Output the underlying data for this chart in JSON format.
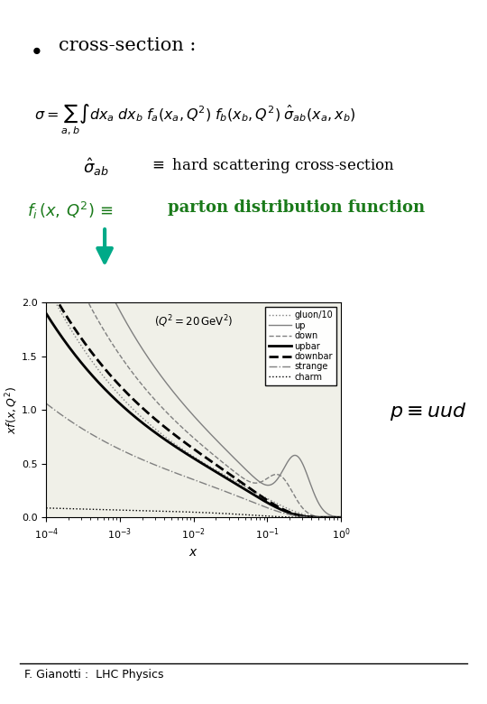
{
  "background_color": "#ffffff",
  "bullet_text": "cross-section :",
  "formula_fi_color": "#1a7a1a",
  "formula_parton_color": "#1a7a1a",
  "arrow_color": "#00aa88",
  "footer": "F. Gianotti :  LHC Physics",
  "plot_title": "$(Q^2=20\\, \\mathrm{GeV}^2)$",
  "ylabel": "$xf(x,Q^2)$",
  "xlabel": "$x$",
  "legend_entries": [
    "gluon/10",
    "up",
    "down",
    "upbar",
    "downbar",
    "strange",
    "charm"
  ],
  "legend_styles": [
    {
      "linestyle": ":",
      "color": "gray",
      "linewidth": 1
    },
    {
      "linestyle": "-",
      "color": "gray",
      "linewidth": 1
    },
    {
      "linestyle": "--",
      "color": "gray",
      "linewidth": 1
    },
    {
      "linestyle": "-",
      "color": "black",
      "linewidth": 2
    },
    {
      "linestyle": "--",
      "color": "black",
      "linewidth": 2
    },
    {
      "linestyle": "-.",
      "color": "gray",
      "linewidth": 1
    },
    {
      "linestyle": ":",
      "color": "black",
      "linewidth": 1
    }
  ],
  "plot_bg": "#f0f0e8"
}
